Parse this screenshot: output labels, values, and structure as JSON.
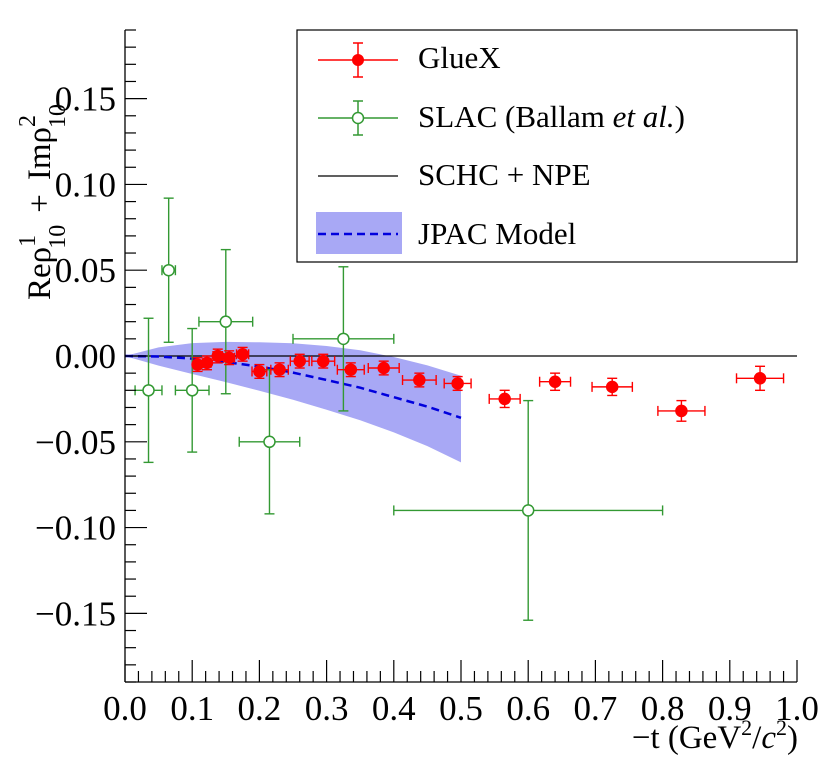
{
  "chart_data": {
    "type": "scatter",
    "ylabel": {
      "re": "Re",
      "rho": "ρ",
      "sup1": "1",
      "sub1": "10",
      "plus": "+",
      "im": "Im",
      "sup2": "2",
      "sub2": "10"
    },
    "xlabel": {
      "prefix": "−t (GeV",
      "sup": "2",
      "slash": "/",
      "c": "c",
      "csup": "2",
      "suffix": ")"
    },
    "xlim": [
      0.0,
      1.0
    ],
    "ylim": [
      -0.19,
      0.19
    ],
    "x_ticks": [
      "0.0",
      "0.1",
      "0.2",
      "0.3",
      "0.4",
      "0.5",
      "0.6",
      "0.7",
      "0.8",
      "0.9",
      "1.0"
    ],
    "x_tick_values": [
      0.0,
      0.1,
      0.2,
      0.3,
      0.4,
      0.5,
      0.6,
      0.7,
      0.8,
      0.9,
      1.0
    ],
    "y_ticks": [
      "0.15",
      "0.10",
      "0.05",
      "0.00",
      "−0.05",
      "−0.10",
      "−0.15"
    ],
    "y_tick_values": [
      0.15,
      0.1,
      0.05,
      0.0,
      -0.05,
      -0.1,
      -0.15
    ],
    "legend": {
      "position": "top-right",
      "entries": [
        {
          "key": "gluex",
          "label": "GlueX"
        },
        {
          "key": "slac",
          "label": "SLAC (Ballam ",
          "label_italic": "et al.",
          "label_end": ")"
        },
        {
          "key": "schc",
          "label": "SCHC + NPE"
        },
        {
          "key": "jpac",
          "label": "JPAC Model"
        }
      ]
    },
    "colors": {
      "gluex": "#ff0000",
      "slac": "#339933",
      "schc": "#000000",
      "jpac_band": "#a8a8f5",
      "jpac_line": "#0000dd"
    },
    "series": [
      {
        "name": "GlueX",
        "x": [
          0.108,
          0.122,
          0.138,
          0.155,
          0.175,
          0.2,
          0.23,
          0.26,
          0.295,
          0.336,
          0.385,
          0.438,
          0.495,
          0.565,
          0.64,
          0.725,
          0.828,
          0.945
        ],
        "y": [
          -0.005,
          -0.004,
          0.0,
          -0.001,
          0.001,
          -0.009,
          -0.008,
          -0.003,
          -0.003,
          -0.008,
          -0.007,
          -0.014,
          -0.016,
          -0.025,
          -0.015,
          -0.018,
          -0.032,
          -0.013
        ],
        "xerr": [
          0.006,
          0.006,
          0.007,
          0.008,
          0.009,
          0.011,
          0.013,
          0.014,
          0.017,
          0.02,
          0.023,
          0.025,
          0.02,
          0.023,
          0.023,
          0.03,
          0.035,
          0.035
        ],
        "yerr": [
          0.004,
          0.004,
          0.004,
          0.004,
          0.004,
          0.004,
          0.004,
          0.004,
          0.004,
          0.004,
          0.004,
          0.004,
          0.004,
          0.005,
          0.005,
          0.005,
          0.006,
          0.007
        ]
      },
      {
        "name": "SLAC (Ballam et al.)",
        "x": [
          0.035,
          0.065,
          0.1,
          0.15,
          0.215,
          0.325,
          0.6
        ],
        "y": [
          -0.02,
          0.05,
          -0.02,
          0.02,
          -0.05,
          0.01,
          -0.09
        ],
        "xerr": [
          0.02,
          0.01,
          0.025,
          0.04,
          0.045,
          0.075,
          0.2
        ],
        "yerr": [
          0.042,
          0.042,
          0.036,
          0.042,
          0.042,
          0.042,
          0.064
        ]
      }
    ],
    "model": {
      "name": "JPAC Model",
      "x": [
        0.0,
        0.05,
        0.1,
        0.15,
        0.2,
        0.25,
        0.3,
        0.35,
        0.4,
        0.45,
        0.5
      ],
      "y": [
        0.0,
        -0.0003,
        -0.0015,
        -0.0035,
        -0.0062,
        -0.0097,
        -0.014,
        -0.0185,
        -0.024,
        -0.0295,
        -0.036
      ],
      "band_upper": [
        0.0,
        0.005,
        0.0075,
        0.0082,
        0.008,
        0.0074,
        0.0058,
        0.0033,
        -0.0006,
        -0.0055,
        -0.0115
      ],
      "band_lower": [
        0.0,
        -0.0056,
        -0.0105,
        -0.0152,
        -0.0202,
        -0.0255,
        -0.0313,
        -0.0375,
        -0.0445,
        -0.0525,
        -0.062
      ]
    },
    "reference_line": {
      "name": "SCHC + NPE",
      "y": 0.0
    }
  }
}
